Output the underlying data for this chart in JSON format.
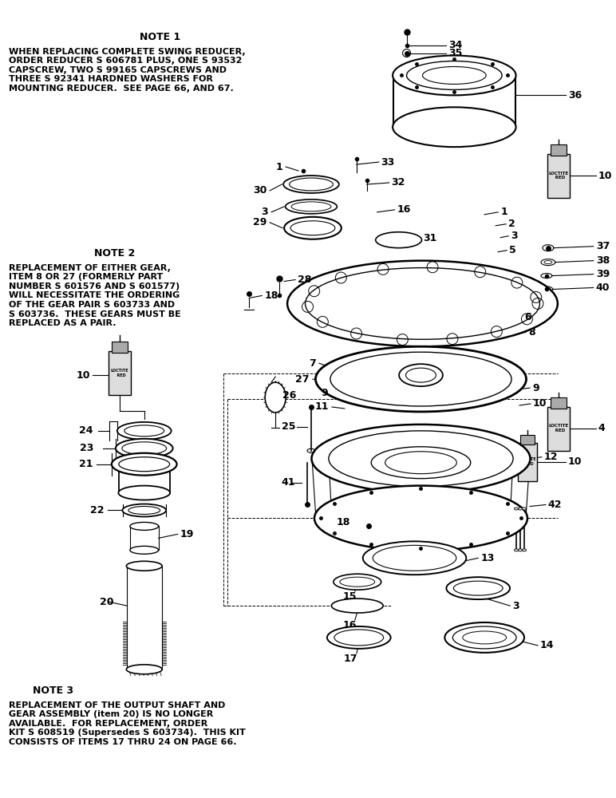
{
  "bg_color": "#ffffff",
  "fig_width": 7.72,
  "fig_height": 10.0,
  "note1_title": "NOTE 1",
  "note1_body": "WHEN REPLACING COMPLETE SWING REDUCER,\nORDER REDUCER S 606781 PLUS, ONE S 93532\nCAPSCREW, TWO S 99165 CAPSCREWS AND\nTHREE S 92341 HARDNED WASHERS FOR\nMOUNTING REDUCER.  SEE PAGE 66, AND 67.",
  "note2_title": "NOTE 2",
  "note2_body": "REPLACEMENT OF EITHER GEAR,\nITEM 8 OR 27 (FORMERLY PART\nNUMBER S 601576 AND S 601577)\nWILL NECESSITATE THE ORDERING\nOF THE GEAR PAIR S 603733 AND\nS 603736.  THESE GEARS MUST BE\nREPLACED AS A PAIR.",
  "note3_title": "NOTE 3",
  "note3_body": "REPLACEMENT OF THE OUTPUT SHAFT AND\nGEAR ASSEMBLY (item 20) IS NO LONGER\nAVAILABLE.  FOR REPLACEMENT, ORDER\nKIT S 608519 (Supersedes S 603734).  THIS KIT\nCONSISTS OF ITEMS 17 THRU 24 ON PAGE 66."
}
